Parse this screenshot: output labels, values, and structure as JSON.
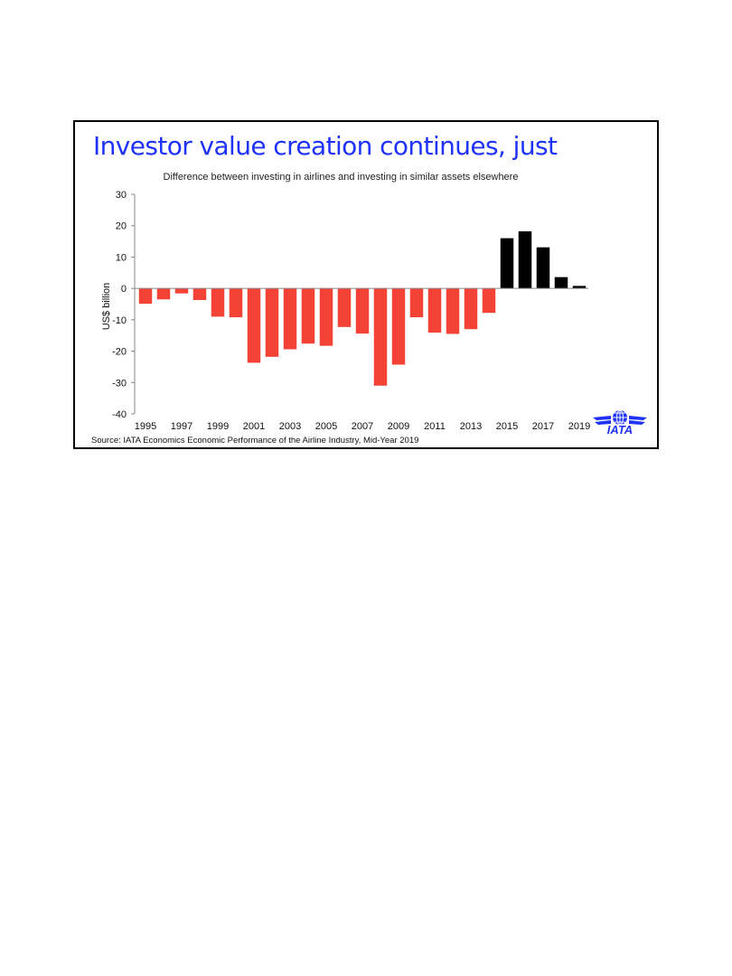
{
  "slide": {
    "title": "Investor value creation continues, just",
    "source": "Source: IATA Economics Economic Performance of the Airline Industry, Mid-Year 2019",
    "logo_text": "IATA"
  },
  "colors": {
    "title": "#1e32fa",
    "negative_bar": "#f44336",
    "positive_bar": "#000000",
    "logo": "#1e32fa"
  },
  "chart_data": {
    "type": "bar",
    "title": "",
    "subtitle": "Difference between investing in airlines and investing in similar assets elsewhere",
    "xlabel": "",
    "ylabel": "US$ billion",
    "ylim": [
      -40,
      30
    ],
    "yticks": [
      30,
      20,
      10,
      0,
      -10,
      -20,
      -30,
      -40
    ],
    "xtick_labels": [
      "1995",
      "1997",
      "1999",
      "2001",
      "2003",
      "2005",
      "2007",
      "2009",
      "2011",
      "2013",
      "2015",
      "2017",
      "2019"
    ],
    "categories": [
      "1995",
      "1996",
      "1997",
      "1998",
      "1999",
      "2000",
      "2001",
      "2002",
      "2003",
      "2004",
      "2005",
      "2006",
      "2007",
      "2008",
      "2009",
      "2010",
      "2011",
      "2012",
      "2013",
      "2014",
      "2015",
      "2016",
      "2017",
      "2018",
      "2019"
    ],
    "values": [
      -4.9,
      -3.5,
      -1.6,
      -3.7,
      -9.0,
      -9.2,
      -23.7,
      -21.8,
      -19.4,
      -17.6,
      -18.3,
      -12.3,
      -14.4,
      -31.0,
      -24.3,
      -9.2,
      -14.1,
      -14.5,
      -13.0,
      -7.8,
      16.0,
      18.2,
      13.1,
      3.6,
      0.8
    ],
    "grid": false,
    "legend": "none"
  }
}
